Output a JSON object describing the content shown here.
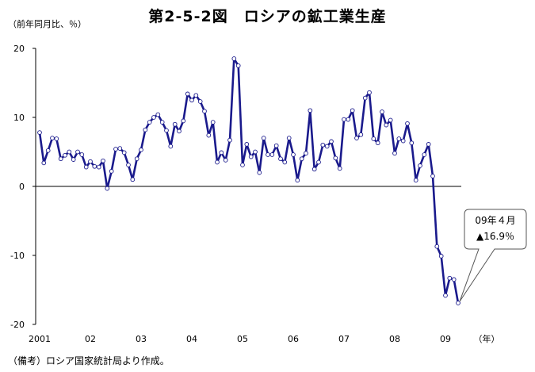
{
  "title": "第2-5-2図　ロシアの鉱工業生産",
  "unit_label": "（前年同月比、％）",
  "source_note": "（備考）ロシア国家統計局より作成。",
  "colors": {
    "line": "#1a1a8c",
    "marker_fill": "#ffffff",
    "axis": "#000000"
  },
  "chart_data": {
    "type": "line",
    "title": "第2-5-2図　ロシアの鉱工業生産",
    "xlabel": "（年）",
    "ylabel": "（前年同月比、％）",
    "ylim": [
      -20,
      20
    ],
    "yticks": [
      20,
      10,
      0,
      -10,
      -20
    ],
    "xticks": [
      "2001",
      "02",
      "03",
      "04",
      "05",
      "06",
      "07",
      "08",
      "09"
    ],
    "xtick_unit": "（年）",
    "grid": false,
    "zero_line": true,
    "x_start": "2001-01",
    "series": [
      {
        "values": [
          7.8,
          3.4,
          5.2,
          7.0,
          6.9,
          4.0,
          4.5,
          5.0,
          3.9,
          5.0,
          4.6,
          2.8,
          3.6,
          2.9,
          2.8,
          3.7,
          -0.3,
          2.2,
          5.4,
          5.5,
          4.9,
          3.1,
          1.0,
          4.0,
          5.3,
          8.2,
          9.3,
          10.0,
          10.4,
          9.3,
          8.1,
          5.8,
          9.0,
          8.0,
          9.5,
          13.4,
          12.5,
          13.2,
          12.3,
          10.9,
          7.4,
          9.3,
          3.5,
          4.9,
          3.8,
          6.7,
          18.5,
          17.5,
          3.1,
          6.1,
          4.3,
          5.0,
          2.0,
          7.0,
          4.6,
          4.6,
          5.9,
          4.0,
          3.5,
          7.0,
          4.6,
          0.9,
          4.0,
          4.8,
          11.0,
          2.5,
          3.5,
          6.0,
          5.8,
          6.5,
          4.1,
          2.6,
          9.7,
          9.7,
          11.0,
          7.0,
          7.5,
          12.8,
          13.6,
          6.9,
          6.3,
          10.8,
          8.9,
          9.6,
          4.8,
          6.9,
          6.6,
          9.1,
          6.3,
          0.9,
          3.0,
          4.6,
          6.1,
          1.5,
          -8.7,
          -10.1,
          -15.8,
          -13.3,
          -13.5,
          -16.9
        ]
      }
    ],
    "annotation": {
      "line1": "09年４月",
      "line2": "▲16.9％",
      "value": -16.9,
      "target": "2009-04"
    }
  }
}
